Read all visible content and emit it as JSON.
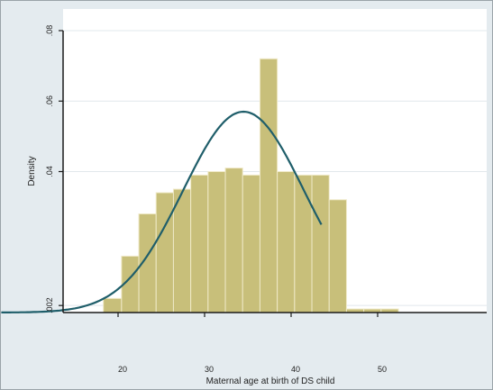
{
  "chart_data": {
    "type": "bar",
    "subtype": "histogram-with-normal-density",
    "title": "",
    "xlabel": "Maternal age at birth of DS child",
    "ylabel": "Density",
    "xlim": [
      10,
      50
    ],
    "x_ticks": [
      20,
      30,
      40,
      50
    ],
    "x_tick_labels": [
      "20",
      "30",
      "40",
      "50"
    ],
    "ylim": [
      0,
      0.08
    ],
    "y_ticks": [
      0.002,
      0.04,
      0.06,
      0.08
    ],
    "y_tick_labels": [
      ".002",
      ".04",
      ".06",
      ".08"
    ],
    "grid": true,
    "legend": "none",
    "bins": [
      {
        "x0": 18.3,
        "x1": 20.4,
        "value": 0.004
      },
      {
        "x0": 20.4,
        "x1": 22.4,
        "value": 0.016
      },
      {
        "x0": 22.4,
        "x1": 24.4,
        "value": 0.028
      },
      {
        "x0": 24.4,
        "x1": 26.4,
        "value": 0.034
      },
      {
        "x0": 26.4,
        "x1": 28.4,
        "value": 0.035
      },
      {
        "x0": 28.4,
        "x1": 30.4,
        "value": 0.039
      },
      {
        "x0": 30.4,
        "x1": 32.4,
        "value": 0.04
      },
      {
        "x0": 32.4,
        "x1": 34.4,
        "value": 0.041
      },
      {
        "x0": 34.4,
        "x1": 36.4,
        "value": 0.039
      },
      {
        "x0": 36.4,
        "x1": 38.4,
        "value": 0.072
      },
      {
        "x0": 38.4,
        "x1": 40.4,
        "value": 0.04
      },
      {
        "x0": 40.4,
        "x1": 42.4,
        "value": 0.039
      },
      {
        "x0": 42.4,
        "x1": 44.4,
        "value": 0.039
      },
      {
        "x0": 44.4,
        "x1": 46.4,
        "value": 0.032
      },
      {
        "x0": 46.4,
        "x1": 48.4,
        "value": 0.001
      },
      {
        "x0": 48.4,
        "x1": 50.4,
        "value": 0.001
      },
      {
        "x0": 50.4,
        "x1": 52.4,
        "value": 0.001
      }
    ],
    "density_curve": {
      "mean": 34.5,
      "sd": 7.0,
      "x_range": [
        6.5,
        43.5
      ]
    },
    "colors": {
      "bar_fill": "#c8bf7a",
      "bar_edge": "#efe9c7",
      "curve": "#1f5e6a",
      "outer_bg": "#e4ebef",
      "plot_bg": "#ffffff",
      "grid": "#e2e8ec",
      "axis": "#1a1a1a"
    }
  }
}
